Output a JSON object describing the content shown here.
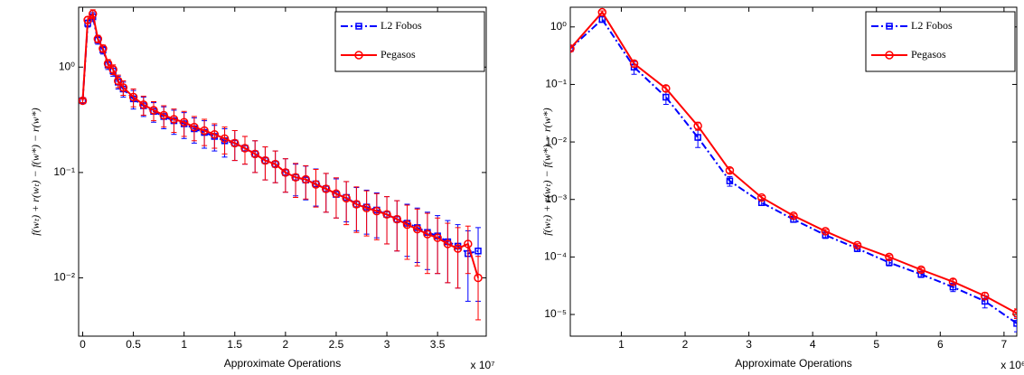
{
  "chart_data": [
    {
      "type": "line",
      "x_label": "Approximate Operations",
      "y_label": "f(wₜ) + r(wₜ) − f(w*) − r(w*)",
      "x_multiplier": "x 10⁷",
      "y_scale": "log",
      "legend": "upper right",
      "xlim": [
        -0.04,
        3.98
      ],
      "xticks": [
        0,
        0.5,
        1,
        1.5,
        2,
        2.5,
        3,
        3.5
      ],
      "ylim": [
        0.0028,
        3.7
      ],
      "yticks": [
        {
          "value": 0.01,
          "label": "10⁻²"
        },
        {
          "value": 0.1,
          "label": "10⁻¹"
        },
        {
          "value": 1,
          "label": "10⁰"
        }
      ],
      "x": [
        0,
        0.05,
        0.1,
        0.15,
        0.2,
        0.25,
        0.3,
        0.35,
        0.4,
        0.5,
        0.6,
        0.7,
        0.8,
        0.9,
        1.0,
        1.1,
        1.2,
        1.3,
        1.4,
        1.5,
        1.6,
        1.7,
        1.8,
        1.9,
        2.0,
        2.1,
        2.2,
        2.3,
        2.4,
        2.5,
        2.6,
        2.7,
        2.8,
        2.9,
        3.0,
        3.1,
        3.2,
        3.3,
        3.4,
        3.5,
        3.6,
        3.7,
        3.8,
        3.9
      ],
      "series": [
        {
          "name": "L2 Fobos",
          "color": "#0000ff",
          "dash": "dashdot",
          "marker": "square",
          "values": [
            0.48,
            2.6,
            3.0,
            1.8,
            1.45,
            1.05,
            0.92,
            0.72,
            0.62,
            0.5,
            0.43,
            0.38,
            0.34,
            0.31,
            0.29,
            0.26,
            0.24,
            0.22,
            0.2,
            0.19,
            0.17,
            0.15,
            0.13,
            0.12,
            0.1,
            0.09,
            0.085,
            0.078,
            0.07,
            0.062,
            0.058,
            0.05,
            0.047,
            0.044,
            0.04,
            0.036,
            0.033,
            0.03,
            0.027,
            0.025,
            0.022,
            0.02,
            0.017,
            0.018
          ],
          "errors": [
            0.02,
            0.2,
            0.3,
            0.15,
            0.12,
            0.1,
            0.1,
            0.1,
            0.1,
            0.1,
            0.09,
            0.08,
            0.08,
            0.08,
            0.08,
            0.07,
            0.07,
            0.06,
            0.06,
            0.06,
            0.05,
            0.05,
            0.045,
            0.04,
            0.035,
            0.03,
            0.03,
            0.03,
            0.028,
            0.025,
            0.024,
            0.022,
            0.021,
            0.02,
            0.019,
            0.018,
            0.017,
            0.016,
            0.015,
            0.014,
            0.013,
            0.012,
            0.011,
            0.012
          ]
        },
        {
          "name": "Pegasos",
          "color": "#ff0000",
          "dash": "solid",
          "marker": "circle",
          "values": [
            0.48,
            2.8,
            3.2,
            1.85,
            1.5,
            1.08,
            0.95,
            0.74,
            0.64,
            0.52,
            0.44,
            0.39,
            0.35,
            0.32,
            0.3,
            0.27,
            0.25,
            0.23,
            0.21,
            0.19,
            0.17,
            0.15,
            0.13,
            0.12,
            0.1,
            0.09,
            0.086,
            0.077,
            0.07,
            0.063,
            0.057,
            0.05,
            0.046,
            0.043,
            0.04,
            0.036,
            0.032,
            0.029,
            0.026,
            0.024,
            0.021,
            0.019,
            0.021,
            0.01
          ],
          "errors": [
            0.02,
            0.2,
            0.3,
            0.15,
            0.12,
            0.1,
            0.1,
            0.1,
            0.1,
            0.1,
            0.09,
            0.08,
            0.08,
            0.08,
            0.08,
            0.07,
            0.07,
            0.06,
            0.06,
            0.06,
            0.05,
            0.05,
            0.045,
            0.04,
            0.035,
            0.032,
            0.03,
            0.03,
            0.028,
            0.026,
            0.025,
            0.023,
            0.021,
            0.02,
            0.019,
            0.018,
            0.017,
            0.016,
            0.015,
            0.013,
            0.012,
            0.011,
            0.01,
            0.006
          ]
        }
      ]
    },
    {
      "type": "line",
      "x_label": "Approximate Operations",
      "y_label": "f(wₜ) + r(wₜ) − f(w*) − r(w*)",
      "x_multiplier": "x 10⁶",
      "y_scale": "log",
      "legend": "upper right",
      "xlim": [
        0.2,
        7.2
      ],
      "xticks": [
        1,
        2,
        3,
        4,
        5,
        6,
        7
      ],
      "ylim": [
        4.2e-06,
        2.2
      ],
      "yticks": [
        {
          "value": 1e-05,
          "label": "10⁻⁵"
        },
        {
          "value": 0.0001,
          "label": "10⁻⁴"
        },
        {
          "value": 0.001,
          "label": "10⁻³"
        },
        {
          "value": 0.01,
          "label": "10⁻²"
        },
        {
          "value": 0.1,
          "label": "10⁻¹"
        },
        {
          "value": 1,
          "label": "10⁰"
        }
      ],
      "x": [
        0.2,
        0.7,
        1.2,
        1.7,
        2.2,
        2.7,
        3.2,
        3.7,
        4.2,
        4.7,
        5.2,
        5.7,
        6.2,
        6.7,
        7.2
      ],
      "series": [
        {
          "name": "L2 Fobos",
          "color": "#0000ff",
          "dash": "dashdot",
          "marker": "square",
          "values": [
            0.42,
            1.35,
            0.2,
            0.06,
            0.012,
            0.0021,
            0.00088,
            0.00045,
            0.00024,
            0.00014,
            8e-05,
            5e-05,
            3e-05,
            1.7e-05,
            7e-06
          ],
          "errors": [
            0.04,
            0.15,
            0.05,
            0.015,
            0.004,
            0.0004,
            9e-05,
            5e-05,
            3e-05,
            1.6e-05,
            1e-05,
            6e-06,
            5e-06,
            4e-06,
            2e-06
          ]
        },
        {
          "name": "Pegasos",
          "color": "#ff0000",
          "dash": "solid",
          "marker": "circle",
          "values": [
            0.42,
            1.8,
            0.23,
            0.085,
            0.019,
            0.0032,
            0.00108,
            0.00052,
            0.00028,
            0.00016,
            0.0001,
            6e-05,
            3.7e-05,
            2.1e-05,
            1.05e-05
          ],
          "errors": [
            0.03,
            0.1,
            0.03,
            0.01,
            0.003,
            0.0003,
            8e-05,
            4e-05,
            2e-05,
            1e-05,
            8e-06,
            5e-06,
            4e-06,
            3e-06,
            2e-06
          ]
        }
      ]
    }
  ]
}
